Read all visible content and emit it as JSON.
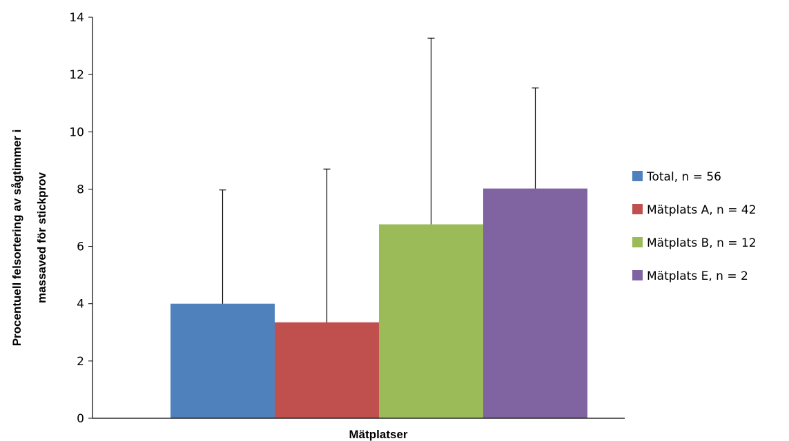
{
  "chart_data": {
    "type": "bar",
    "xlabel": "Mätplatser",
    "ylabel_lines": [
      "Procentuell felsortering  av sågtimmer i",
      "massaved för stickprov"
    ],
    "ylim": [
      0,
      14
    ],
    "yticks": [
      0,
      2,
      4,
      6,
      8,
      10,
      12,
      14
    ],
    "grid": false,
    "legend_position": "right",
    "series": [
      {
        "name": "Total, n = 56",
        "value": 4.0,
        "error_upper": 7.97,
        "color": "#4F81BD"
      },
      {
        "name": "Mätplats A, n = 42",
        "value": 3.35,
        "error_upper": 8.7,
        "color": "#C0504D"
      },
      {
        "name": "Mätplats B, n = 12",
        "value": 6.77,
        "error_upper": 13.27,
        "color": "#9BBB59"
      },
      {
        "name": "Mätplats E, n = 2",
        "value": 8.02,
        "error_upper": 11.53,
        "color": "#8064A2"
      }
    ]
  }
}
